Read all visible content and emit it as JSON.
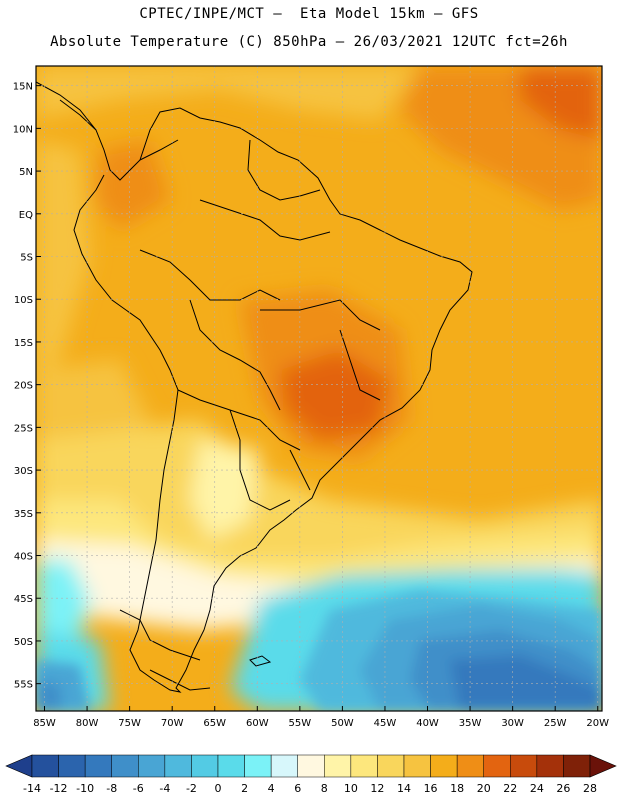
{
  "header": {
    "line1": "CPTEC/INPE/MCT –  Eta Model 15km – GFS",
    "line2": "Absolute Temperature (C) 850hPa – 26/03/2021 12UTC fct=26h"
  },
  "map": {
    "lat_labels": [
      "15N",
      "10N",
      "5N",
      "EQ",
      "5S",
      "10S",
      "15S",
      "20S",
      "25S",
      "30S",
      "35S",
      "40S",
      "45S",
      "50S",
      "55S"
    ],
    "lon_labels": [
      "85W",
      "80W",
      "75W",
      "70W",
      "65W",
      "60W",
      "55W",
      "50W",
      "45W",
      "40W",
      "35W",
      "30W",
      "25W",
      "20W"
    ],
    "lat_values": [
      15,
      10,
      5,
      0,
      -5,
      -10,
      -15,
      -20,
      -25,
      -30,
      -35,
      -40,
      -45,
      -50,
      -55
    ],
    "lon_values": [
      -85,
      -80,
      -75,
      -70,
      -65,
      -60,
      -55,
      -50,
      -45,
      -40,
      -35,
      -30,
      -25,
      -20
    ]
  },
  "colorbar": {
    "labels": [
      "-14",
      "-12",
      "-10",
      "-8",
      "-6",
      "-4",
      "-2",
      "0",
      "2",
      "4",
      "6",
      "8",
      "10",
      "12",
      "14",
      "16",
      "18",
      "20",
      "22",
      "24",
      "26",
      "28"
    ],
    "colors": [
      "#1e3f8c",
      "#24519d",
      "#2b64ad",
      "#3479bd",
      "#3f8fc9",
      "#49a5d4",
      "#4fb9dd",
      "#53cbe4",
      "#5adbea",
      "#7bf2f7",
      "#d7f7fb",
      "#fff8e0",
      "#fff4a8",
      "#fde77d",
      "#f9d65c",
      "#f6c340",
      "#f4ad1a",
      "#ef8e16",
      "#e36410",
      "#c84b0c",
      "#a4310a",
      "#7f2108",
      "#6a1209"
    ]
  }
}
